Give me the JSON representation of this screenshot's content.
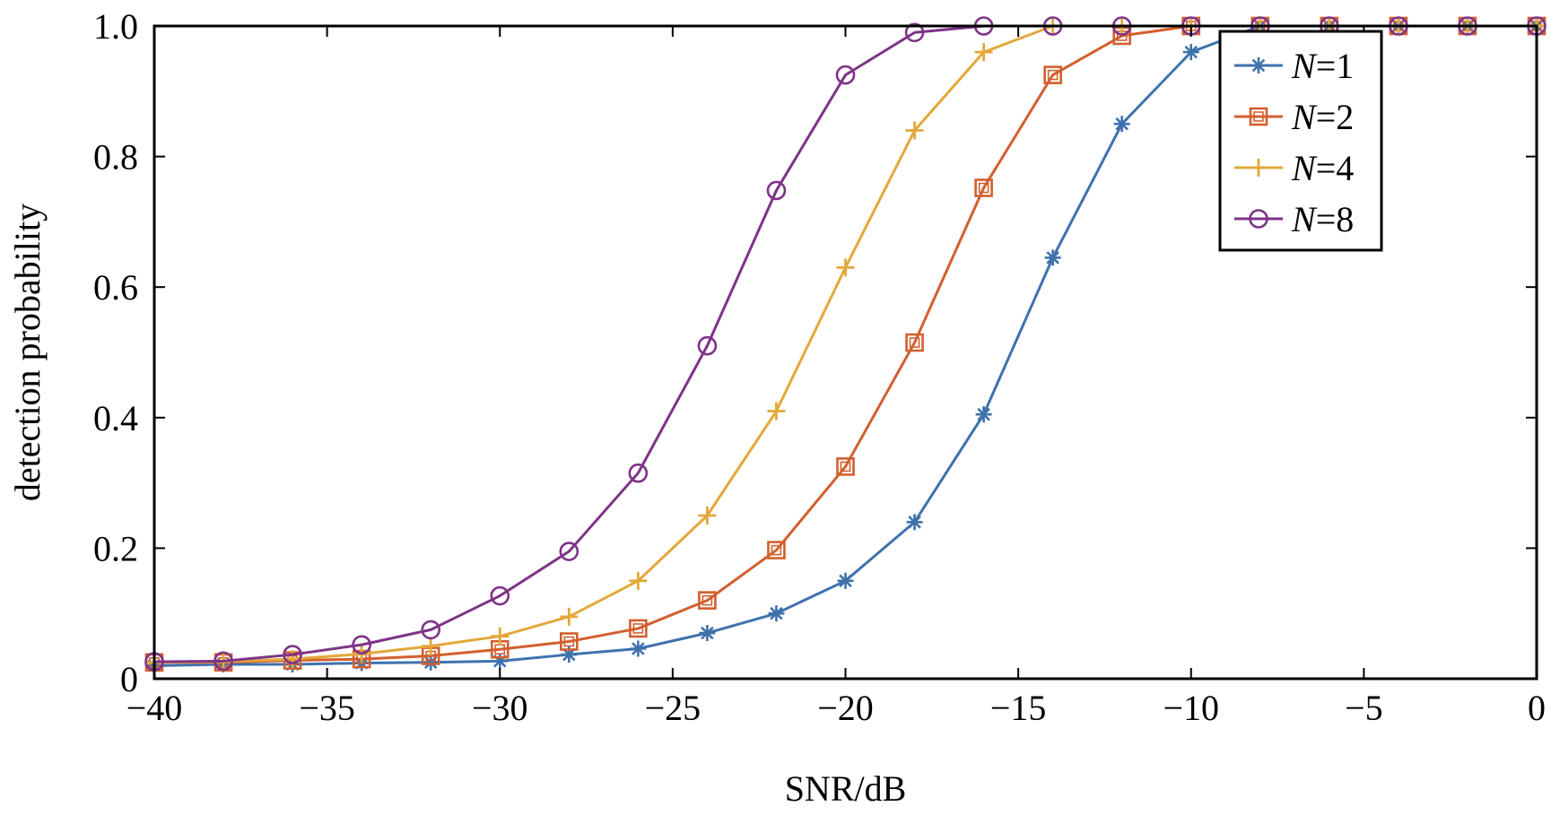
{
  "chart_data": {
    "type": "line",
    "xlabel": "SNR/dB",
    "ylabel": "detection probability",
    "xlim": [
      -40,
      0
    ],
    "ylim": [
      0,
      1.0
    ],
    "x_ticks": [
      -40,
      -35,
      -30,
      -25,
      -20,
      -15,
      -10,
      -5,
      0
    ],
    "x_tick_labels": [
      "−40",
      "−35",
      "−30",
      "−25",
      "−20",
      "−15",
      "−10",
      "−5",
      "0"
    ],
    "y_ticks": [
      0,
      0.2,
      0.4,
      0.6,
      0.8,
      1.0
    ],
    "y_tick_labels": [
      "0",
      "0.2",
      "0.4",
      "0.6",
      "0.8",
      "1.0"
    ],
    "grid": false,
    "legend_position": "top-right",
    "x": [
      -40,
      -38,
      -36,
      -34,
      -32,
      -30,
      -28,
      -26,
      -24,
      -22,
      -20,
      -18,
      -16,
      -14,
      -12,
      -10,
      -8,
      -6,
      -4,
      -2,
      0
    ],
    "series": [
      {
        "name_prefix": "N",
        "name_suffix": "=1",
        "color": "#3e72ad",
        "marker": "asterisk",
        "values": [
          0.02,
          0.022,
          0.022,
          0.024,
          0.025,
          0.027,
          0.037,
          0.046,
          0.07,
          0.1,
          0.15,
          0.24,
          0.405,
          0.645,
          0.85,
          0.96,
          1.0,
          1.0,
          1.0,
          1.0,
          1.0
        ]
      },
      {
        "name_prefix": "N",
        "name_suffix": "=2",
        "color": "#d35f2e",
        "marker": "square",
        "values": [
          0.025,
          0.025,
          0.028,
          0.03,
          0.035,
          0.045,
          0.057,
          0.077,
          0.12,
          0.197,
          0.325,
          0.515,
          0.752,
          0.925,
          0.985,
          1.0,
          1.0,
          1.0,
          1.0,
          1.0,
          1.0
        ]
      },
      {
        "name_prefix": "N",
        "name_suffix": "=4",
        "color": "#e3a83a",
        "marker": "plus",
        "values": [
          0.025,
          0.026,
          0.03,
          0.038,
          0.05,
          0.065,
          0.095,
          0.15,
          0.25,
          0.41,
          0.63,
          0.84,
          0.96,
          1.0,
          1.0,
          1.0,
          1.0,
          1.0,
          1.0,
          1.0,
          1.0
        ]
      },
      {
        "name_prefix": "N",
        "name_suffix": "=8",
        "color": "#7e3387",
        "marker": "circle",
        "values": [
          0.026,
          0.027,
          0.037,
          0.052,
          0.075,
          0.127,
          0.195,
          0.315,
          0.51,
          0.748,
          0.925,
          0.99,
          1.0,
          1.0,
          1.0,
          1.0,
          1.0,
          1.0,
          1.0,
          1.0,
          1.0
        ]
      }
    ]
  }
}
